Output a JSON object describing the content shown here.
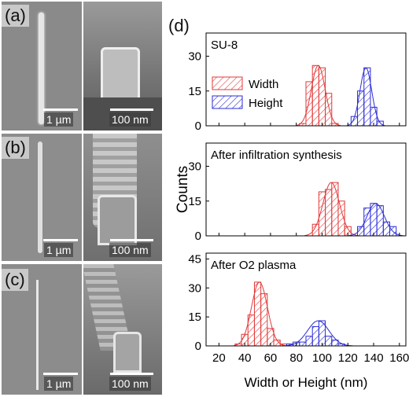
{
  "panels": {
    "a": {
      "label": "(a)",
      "scale_left": "1 µm",
      "scale_right": "100 nm"
    },
    "b": {
      "label": "(b)",
      "scale_left": "1 µm",
      "scale_right": "100 nm"
    },
    "c": {
      "label": "(c)",
      "scale_left": "1 µm",
      "scale_right": "100 nm"
    },
    "d": {
      "label": "(d)"
    }
  },
  "colors": {
    "width": "#e23a3a",
    "height": "#2b2bd6"
  },
  "chart_data": {
    "type": "bar",
    "xlabel": "Width or Height (nm)",
    "ylabel": "Counts",
    "xlim": [
      10,
      165
    ],
    "xticks": [
      20,
      40,
      60,
      80,
      100,
      120,
      140,
      160
    ],
    "legend": {
      "placement": "top-left of first subplot",
      "entries": [
        "Width",
        "Height"
      ]
    },
    "subplots": [
      {
        "title": "SU-8",
        "ylim": [
          0,
          40
        ],
        "yticks": [
          0,
          15,
          30
        ],
        "series": [
          {
            "name": "Width",
            "bin_centers": [
              85,
              90,
              95,
              100,
              105,
              110,
              115
            ],
            "counts": [
              1,
              19,
              26,
              25,
              14,
              1,
              0
            ]
          },
          {
            "name": "Height",
            "bin_centers": [
              125,
              130,
              135,
              140,
              145
            ],
            "counts": [
              4,
              15,
              25,
              8,
              2
            ]
          }
        ]
      },
      {
        "title": "After infiltration synthesis",
        "ylim": [
          0,
          40
        ],
        "yticks": [
          0,
          15,
          30
        ],
        "series": [
          {
            "name": "Width",
            "bin_centers": [
              95,
              100,
              105,
              110,
              115,
              120
            ],
            "counts": [
              5,
              19,
              20,
              23,
              15,
              4
            ]
          },
          {
            "name": "Height",
            "bin_centers": [
              130,
              135,
              140,
              145,
              150,
              155
            ],
            "counts": [
              4,
              12,
              14,
              13,
              6,
              4
            ]
          }
        ]
      },
      {
        "title": "After O2 plasma",
        "ylim": [
          0,
          48
        ],
        "yticks": [
          0,
          15,
          30,
          45
        ],
        "series": [
          {
            "name": "Width",
            "bin_centers": [
              35,
              40,
              45,
              50,
              55,
              60,
              65,
              70
            ],
            "counts": [
              1,
              6,
              16,
              33,
              27,
              9,
              3,
              1
            ]
          },
          {
            "name": "Height",
            "bin_centers": [
              75,
              80,
              85,
              90,
              95,
              100,
              105,
              110,
              115
            ],
            "counts": [
              1,
              2,
              2,
              5,
              10,
              13,
              5,
              3,
              1
            ]
          }
        ]
      }
    ]
  }
}
